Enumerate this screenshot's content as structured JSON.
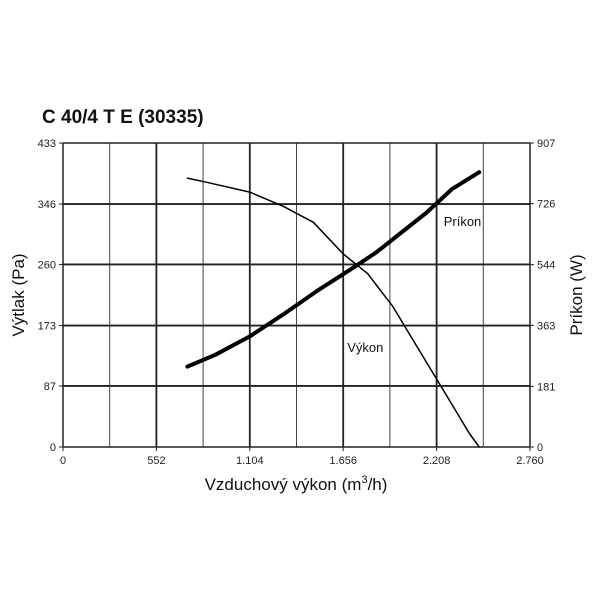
{
  "chart_data": {
    "type": "line",
    "title": "C 40/4 T E (30335)",
    "xlabel": "Vzduchový výkon (m",
    "xlabel_sup": "3",
    "xlabel_end": "/h)",
    "ylabel_left": "Výtlak (Pa)",
    "ylabel_right": "Príkon (W)",
    "xlim": [
      0,
      2760
    ],
    "ylim_left": [
      0,
      433
    ],
    "ylim_right": [
      0,
      907
    ],
    "x_ticks": [
      0,
      552,
      1104,
      1656,
      2208,
      2760
    ],
    "x_tick_labels": [
      "0",
      "552",
      "1.104",
      "1.656",
      "2.208",
      "2.760"
    ],
    "y_left_ticks": [
      0,
      87,
      173,
      260,
      346,
      433
    ],
    "y_left_tick_labels": [
      "0",
      "87",
      "173",
      "260",
      "346",
      "433"
    ],
    "y_right_ticks": [
      0,
      181,
      363,
      544,
      726,
      907
    ],
    "y_right_tick_labels": [
      "0",
      "181",
      "363",
      "544",
      "726",
      "907"
    ],
    "grid": true,
    "minor_grid_x": [
      276,
      828,
      1380,
      1932,
      2484
    ],
    "series": [
      {
        "name": "Výkon",
        "axis": "left",
        "x": [
          735,
          850,
          1104,
          1300,
          1480,
          1656,
          1800,
          1950,
          2100,
          2250,
          2400,
          2460
        ],
        "values": [
          383,
          377,
          363,
          343,
          320,
          275,
          247,
          200,
          140,
          80,
          20,
          0
        ]
      },
      {
        "name": "Príkon",
        "axis": "right",
        "x": [
          735,
          900,
          1104,
          1300,
          1500,
          1700,
          1850,
          2000,
          2150,
          2300,
          2460
        ],
        "values": [
          240,
          275,
          330,
          395,
          465,
          530,
          580,
          640,
          700,
          770,
          820
        ]
      }
    ],
    "annotations": [
      {
        "text": "Výkon",
        "x": 1680,
        "y": 135,
        "axis": "left"
      },
      {
        "text": "Príkon",
        "x": 2250,
        "y": 660,
        "axis": "right"
      }
    ]
  }
}
